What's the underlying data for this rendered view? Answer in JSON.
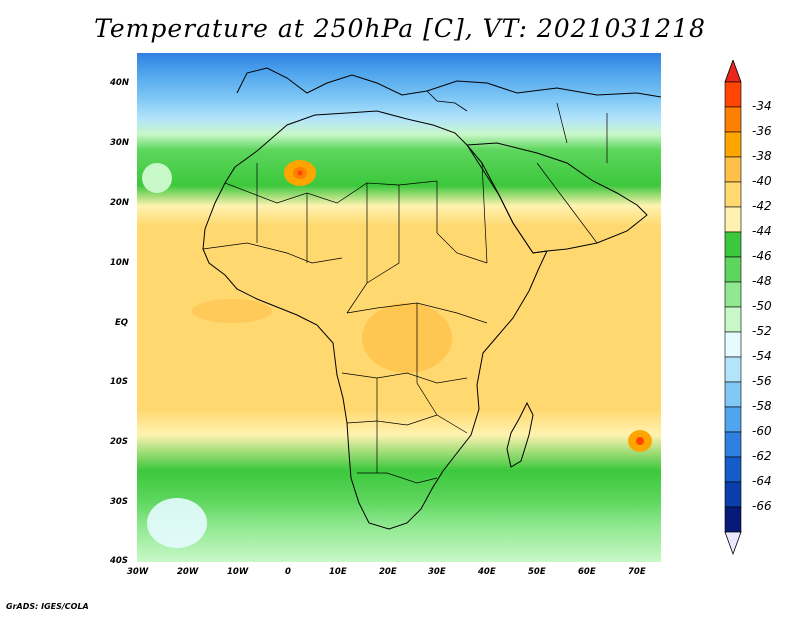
{
  "title": "Temperature at 250hPa [C], VT: 2021031218",
  "credit": "GrADS: IGES/COLA",
  "lat_labels": [
    "40N",
    "30N",
    "20N",
    "10N",
    "EQ",
    "10S",
    "20S",
    "30S",
    "40S"
  ],
  "lon_labels": [
    "30W",
    "20W",
    "10W",
    "0",
    "10E",
    "20E",
    "30E",
    "40E",
    "50E",
    "60E",
    "70E"
  ],
  "extent": {
    "lon": [
      -30,
      75
    ],
    "lat": [
      -40,
      45
    ]
  },
  "colorbar": {
    "labels": [
      "-34",
      "-36",
      "-38",
      "-40",
      "-42",
      "-44",
      "-46",
      "-48",
      "-50",
      "-52",
      "-54",
      "-56",
      "-58",
      "-60",
      "-62",
      "-64",
      "-66"
    ],
    "colors": [
      "#ff4500",
      "#ff7f00",
      "#ffa500",
      "#ffc04a",
      "#ffd970",
      "#fff2b0",
      "#3cc83c",
      "#5ed65e",
      "#90e890",
      "#c8f8c8",
      "#e6fbff",
      "#b4e4fa",
      "#80c8f5",
      "#50a5ee",
      "#2f80e0",
      "#155cc8",
      "#0a3ea8",
      "#081a78"
    ],
    "top_arrow_color": "#e8261c",
    "bottom_arrow_color": "#ece8ff"
  }
}
